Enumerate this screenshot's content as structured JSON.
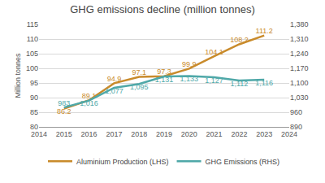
{
  "chart_data": {
    "type": "line",
    "title": "GHG emissions decline (million tonnes)",
    "y_label": "Million tonnes",
    "x": [
      2015,
      2016,
      2017,
      2018,
      2019,
      2020,
      2021,
      2022,
      2023
    ],
    "xlim": [
      2014,
      2024
    ],
    "xticks": [
      2014,
      2015,
      2016,
      2017,
      2018,
      2019,
      2020,
      2021,
      2022,
      2023,
      2024
    ],
    "ylim": [
      80,
      115
    ],
    "yticks": [
      80,
      85,
      90,
      95,
      100,
      105,
      110,
      115
    ],
    "y2lim": [
      890,
      1380
    ],
    "y2ticks": [
      890,
      960,
      {
        "value": 1030,
        "label": "1,030"
      },
      {
        "value": 1100,
        "label": "1,100"
      },
      {
        "value": 1170,
        "label": "1,170"
      },
      {
        "value": 1240,
        "label": "1,240"
      },
      {
        "value": 1310,
        "label": "1,310"
      },
      {
        "value": 1380,
        "label": "1,380"
      }
    ],
    "grid": true,
    "legend": "bottom",
    "data_labels": true,
    "series": [
      {
        "name": "Aluminium Production (LHS)",
        "color": "#c98b2b",
        "axis": "y",
        "values": [
          86.2,
          89.1,
          94.9,
          97.1,
          97.3,
          99.9,
          104.1,
          108.2,
          111.2
        ]
      },
      {
        "name": "GHG Emissions (RHS)",
        "color": "#4fa8a8",
        "axis": "y2",
        "values": [
          983,
          1016,
          1077,
          1095,
          1131,
          1133,
          1127,
          1112,
          1116
        ],
        "value_labels": [
          "983",
          "1,016",
          "1,077",
          "1,095",
          "1,131",
          "1,133",
          "1,127",
          "1,112",
          "1,116"
        ]
      }
    ]
  }
}
